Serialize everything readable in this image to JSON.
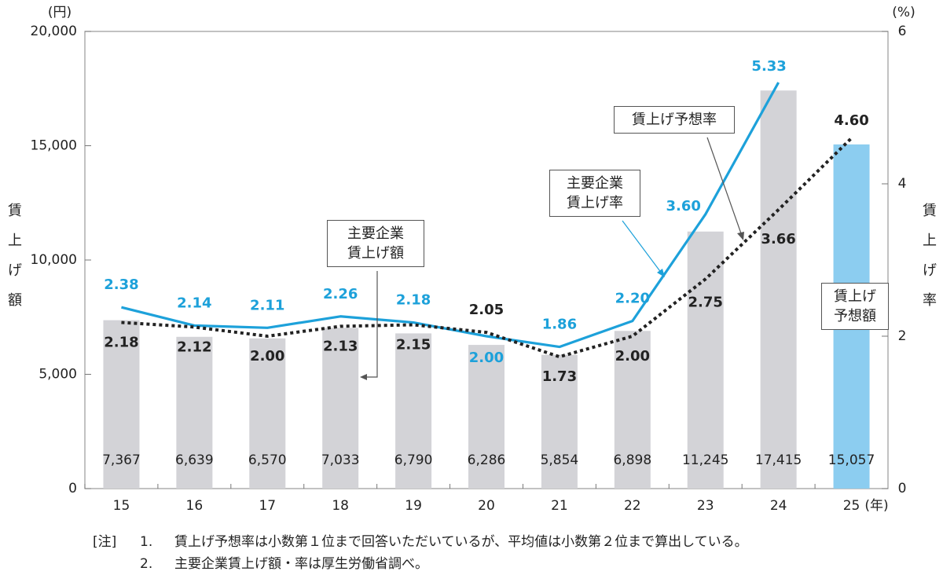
{
  "chart_data": {
    "type": "bar_line",
    "categories": [
      "15",
      "16",
      "17",
      "18",
      "19",
      "20",
      "21",
      "22",
      "23",
      "24",
      "25"
    ],
    "x_unit": "(年)",
    "y_unit": "(円)",
    "y_label": "賃上げ額",
    "y2_unit": "(%)",
    "y2_label": "賃上げ率",
    "ylim": [
      0,
      20000
    ],
    "yticks": [
      0,
      {
        "value": 5000,
        "label": "5,000"
      },
      {
        "value": 10000,
        "label": "10,000"
      },
      {
        "value": 15000,
        "label": "15,000"
      },
      {
        "value": 20000,
        "label": "20,000"
      }
    ],
    "y2lim": [
      0,
      6
    ],
    "y2ticks": [
      0,
      2,
      4,
      6
    ],
    "series": [
      {
        "name": "主要企業\n賃上げ額",
        "kind": "bar",
        "color": "#d3d3d7",
        "values": [
          7367,
          6639,
          6570,
          7033,
          6790,
          6286,
          5854,
          6898,
          11245,
          17415,
          null
        ],
        "value_labels": [
          "7,367",
          "6,639",
          "6,570",
          "7,033",
          "6,790",
          "6,286",
          "5,854",
          "6,898",
          "11,245",
          "17,415",
          null
        ]
      },
      {
        "name": "賃上げ\n予想額",
        "kind": "bar",
        "color": "#8ccdf0",
        "values": [
          null,
          null,
          null,
          null,
          null,
          null,
          null,
          null,
          null,
          null,
          15057
        ],
        "value_labels": [
          null,
          null,
          null,
          null,
          null,
          null,
          null,
          null,
          null,
          null,
          "15,057"
        ]
      },
      {
        "name": "主要企業\n賃上げ率",
        "kind": "line",
        "axis": "y2",
        "color": "#1da1da",
        "dashed": false,
        "values": [
          2.38,
          2.14,
          2.11,
          2.26,
          2.18,
          2.0,
          1.86,
          2.2,
          3.6,
          5.33,
          null
        ],
        "value_labels": [
          "2.38",
          "2.14",
          "2.11",
          "2.26",
          "2.18",
          "2.00",
          "1.86",
          "2.20",
          "3.60",
          "5.33",
          null
        ]
      },
      {
        "name": "賃上げ予想率",
        "kind": "line",
        "axis": "y2",
        "color": "#222222",
        "dashed": true,
        "values": [
          2.18,
          2.12,
          2.0,
          2.13,
          2.15,
          2.05,
          1.73,
          2.0,
          2.75,
          3.66,
          4.6
        ],
        "value_labels": [
          "2.18",
          "2.12",
          "2.00",
          "2.13",
          "2.15",
          "2.05",
          "1.73",
          "2.00",
          "2.75",
          "3.66",
          "4.60"
        ]
      }
    ],
    "notes": {
      "label": "[注]",
      "items": [
        {
          "num": "1.",
          "text": "賃上げ予想率は小数第１位まで回答いただいているが、平均値は小数第２位まで算出している。"
        },
        {
          "num": "2.",
          "text": "主要企業賃上げ額・率は厚生労働省調べ。"
        }
      ]
    }
  }
}
